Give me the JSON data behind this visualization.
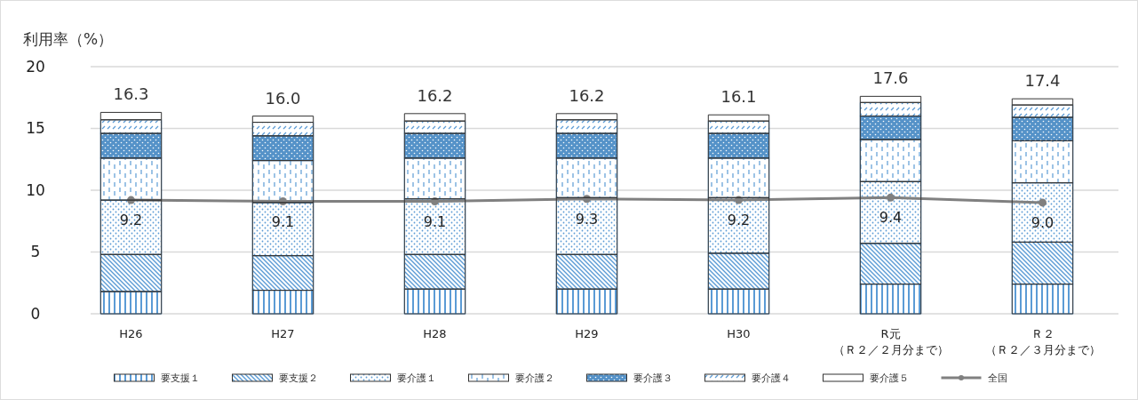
{
  "chart_data": {
    "type": "bar",
    "stacked": true,
    "ylabel": "利用率（%）",
    "categories": [
      "H26",
      "H27",
      "H28",
      "H29",
      "H30",
      "R元（Ｒ２／２月分まで）",
      "Ｒ２（Ｒ２／３月分まで）"
    ],
    "series": [
      {
        "name": "要支援１",
        "color": "#5b9bd5",
        "values": [
          1.8,
          1.9,
          2.0,
          2.0,
          2.0,
          2.4,
          2.4
        ]
      },
      {
        "name": "要支援２",
        "color": "#5b9bd5",
        "values": [
          3.0,
          2.8,
          2.8,
          2.8,
          2.9,
          3.3,
          3.4
        ]
      },
      {
        "name": "要介護１",
        "color": "#5b9bd5",
        "values": [
          4.4,
          4.3,
          4.5,
          4.6,
          4.5,
          5.0,
          4.8
        ]
      },
      {
        "name": "要介護２",
        "color": "#5b9bd5",
        "values": [
          3.4,
          3.4,
          3.3,
          3.2,
          3.2,
          3.4,
          3.4
        ]
      },
      {
        "name": "要介護３",
        "color": "#5592c8",
        "values": [
          2.0,
          2.0,
          2.0,
          2.0,
          2.0,
          1.9,
          1.9
        ]
      },
      {
        "name": "要介護４",
        "color": "#5b9bd5",
        "values": [
          1.1,
          1.1,
          1.0,
          1.1,
          1.0,
          1.1,
          1.0
        ]
      },
      {
        "name": "要介護５",
        "color": "#ffffff",
        "values": [
          0.6,
          0.5,
          0.6,
          0.5,
          0.5,
          0.5,
          0.5
        ]
      },
      {
        "name": "全国",
        "type": "line",
        "color": "#808080",
        "marker": "circle",
        "values": [
          9.2,
          9.1,
          9.1,
          9.3,
          9.2,
          9.4,
          9.0
        ],
        "value_labels": [
          "9.2",
          "9.1",
          "9.1",
          "9.3",
          "9.2",
          "9.4",
          "9.0"
        ]
      }
    ],
    "totals": [
      "16.3",
      "16.0",
      "16.2",
      "16.2",
      "16.1",
      "17.6",
      "17.4"
    ],
    "ylim": [
      0,
      20
    ],
    "yticks": [
      0,
      5,
      10,
      15,
      20
    ],
    "grid": "y",
    "legend": "bottom"
  }
}
